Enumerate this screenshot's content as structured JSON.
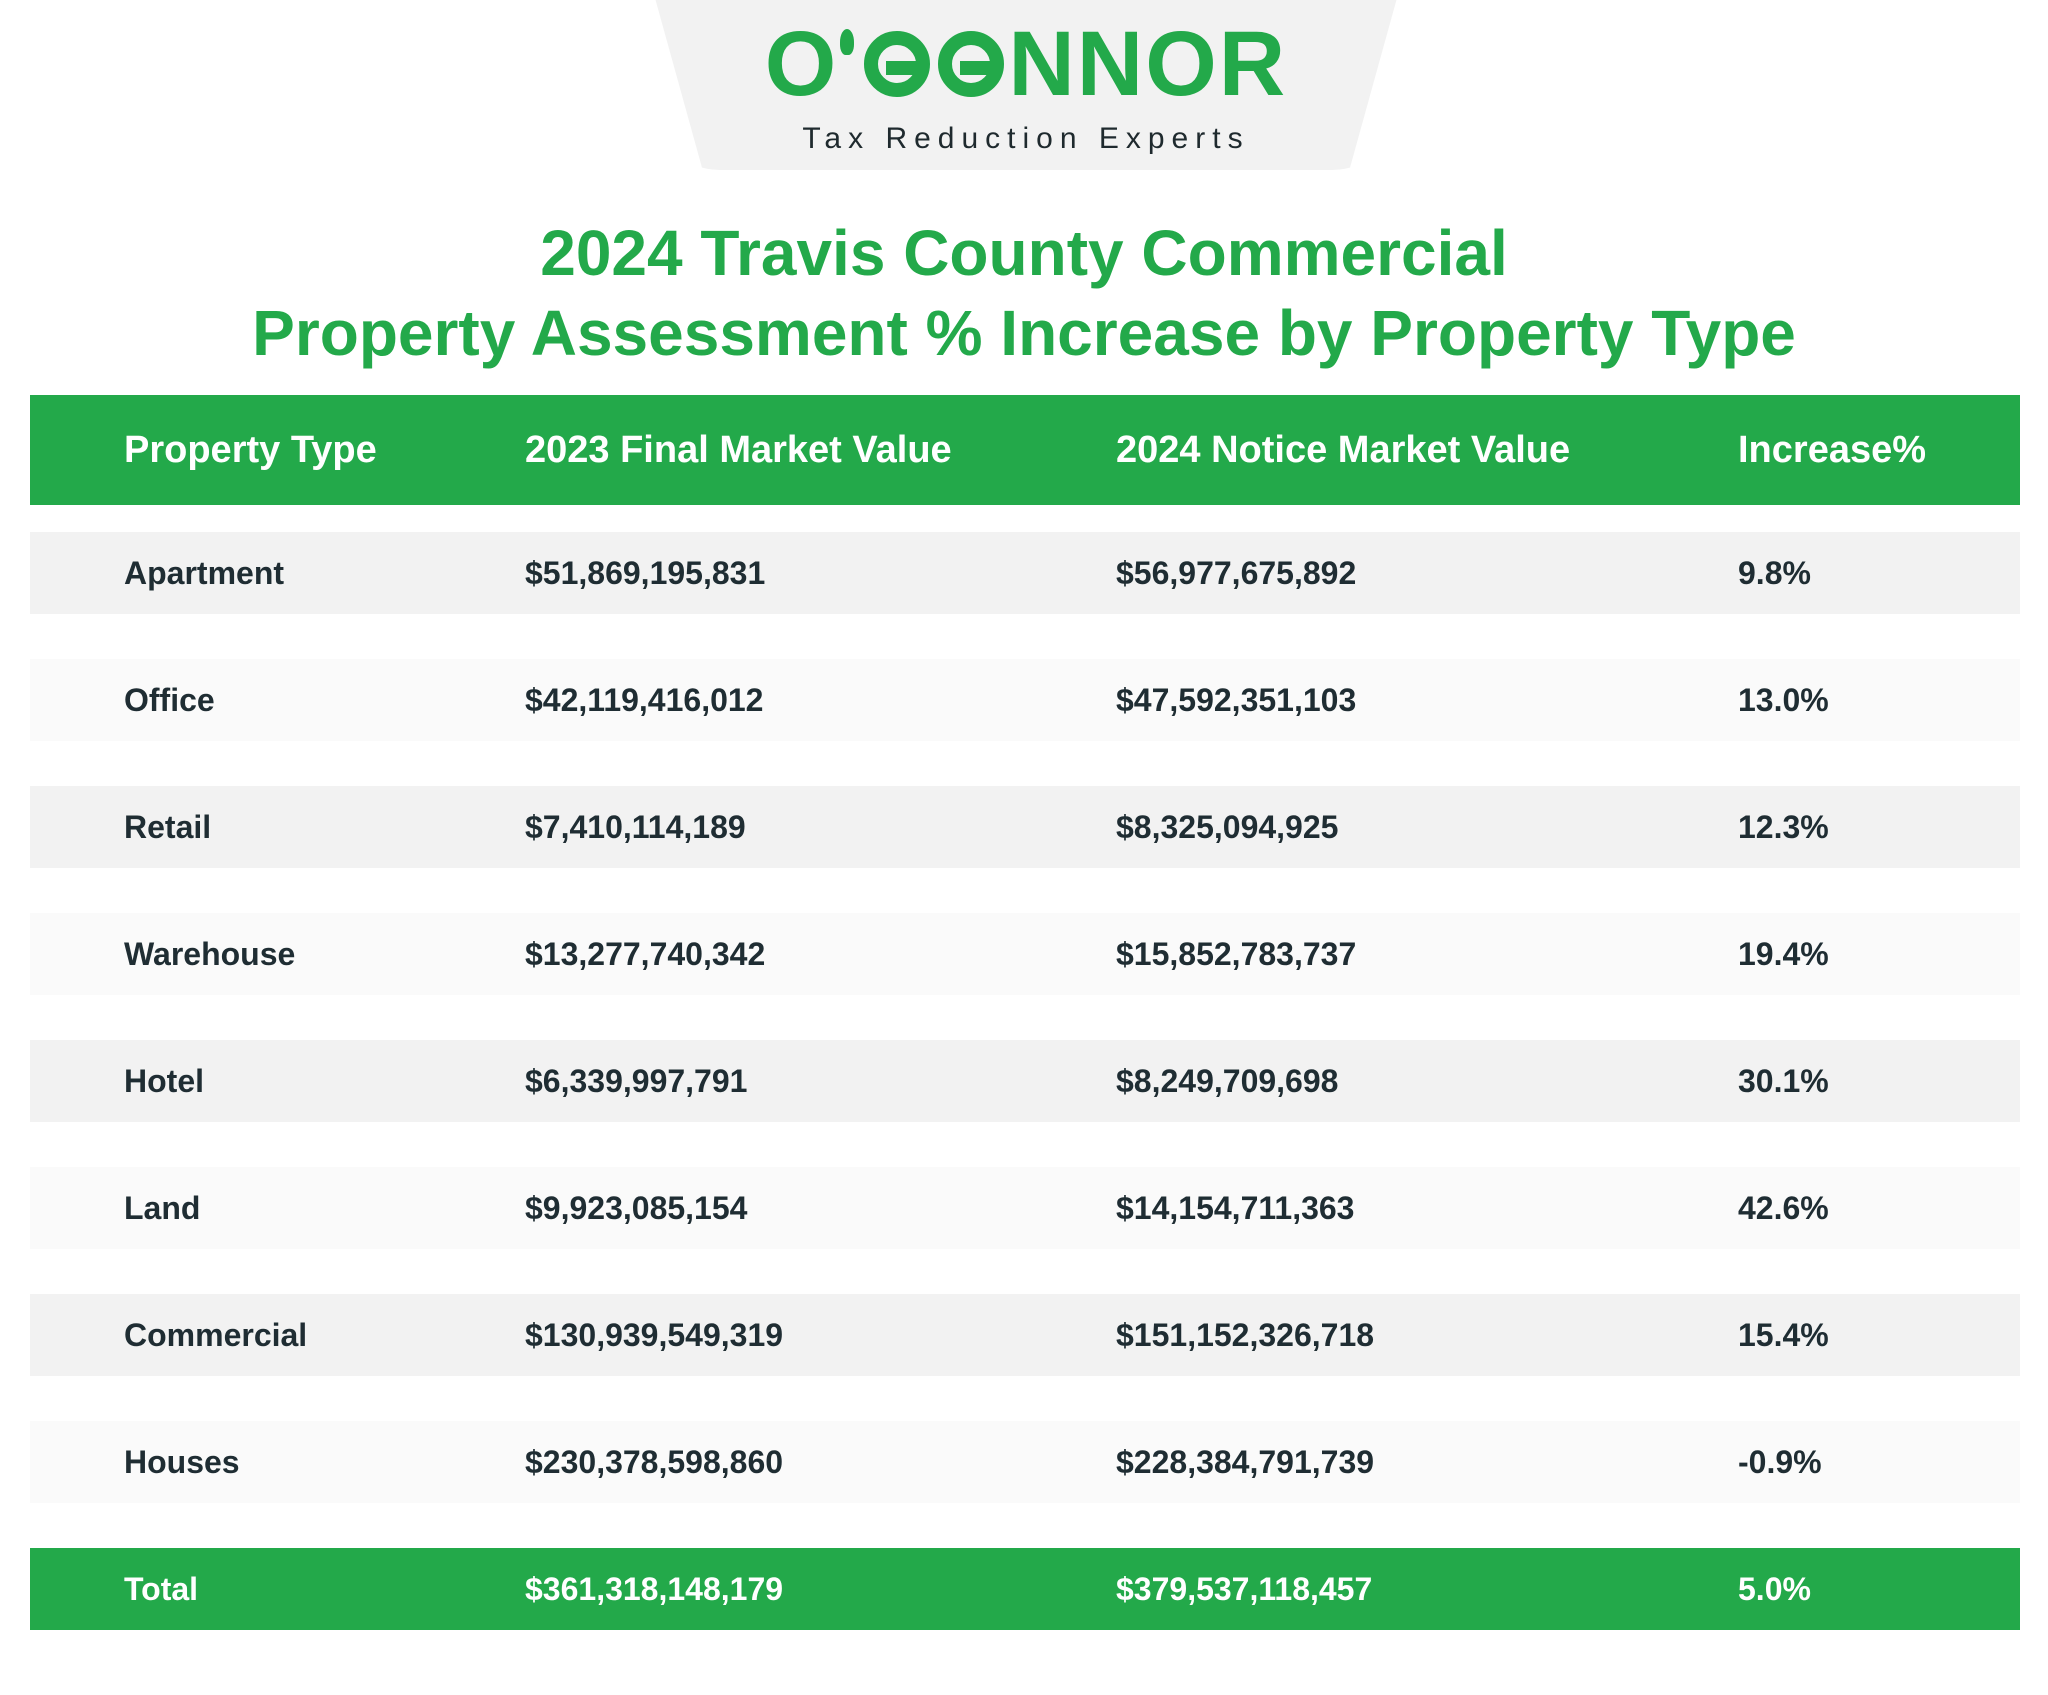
{
  "logo": {
    "letters_before": "O",
    "letters_after": "NNOR",
    "wordmark": "O'CONNOR",
    "tagline": "Tax Reduction Experts",
    "color": "#23a94a"
  },
  "title": {
    "line1": "2024 Travis County Commercial",
    "line2": "Property Assessment % Increase by Property Type"
  },
  "table": {
    "headers": [
      "Property Type",
      "2023 Final Market Value",
      "2024 Notice Market Value",
      "Increase%"
    ],
    "rows": [
      [
        "Apartment",
        "$51,869,195,831",
        "$56,977,675,892",
        "9.8%"
      ],
      [
        "Office",
        "$42,119,416,012",
        "$47,592,351,103",
        "13.0%"
      ],
      [
        "Retail",
        "$7,410,114,189",
        "$8,325,094,925",
        "12.3%"
      ],
      [
        "Warehouse",
        "$13,277,740,342",
        "$15,852,783,737",
        "19.4%"
      ],
      [
        "Hotel",
        "$6,339,997,791",
        "$8,249,709,698",
        "30.1%"
      ],
      [
        "Land",
        "$9,923,085,154",
        "$14,154,711,363",
        "42.6%"
      ],
      [
        "Commercial",
        "$130,939,549,319",
        "$151,152,326,718",
        "15.4%"
      ],
      [
        "Houses",
        "$230,378,598,860",
        "$228,384,791,739",
        "-0.9%"
      ]
    ],
    "total": [
      "Total",
      "$361,318,148,179",
      "$379,537,118,457",
      "5.0%"
    ]
  },
  "colors": {
    "accent": "#23a94a",
    "row_odd": "#f2f2f2",
    "row_even": "#fafafa",
    "text": "#1f2d33"
  }
}
